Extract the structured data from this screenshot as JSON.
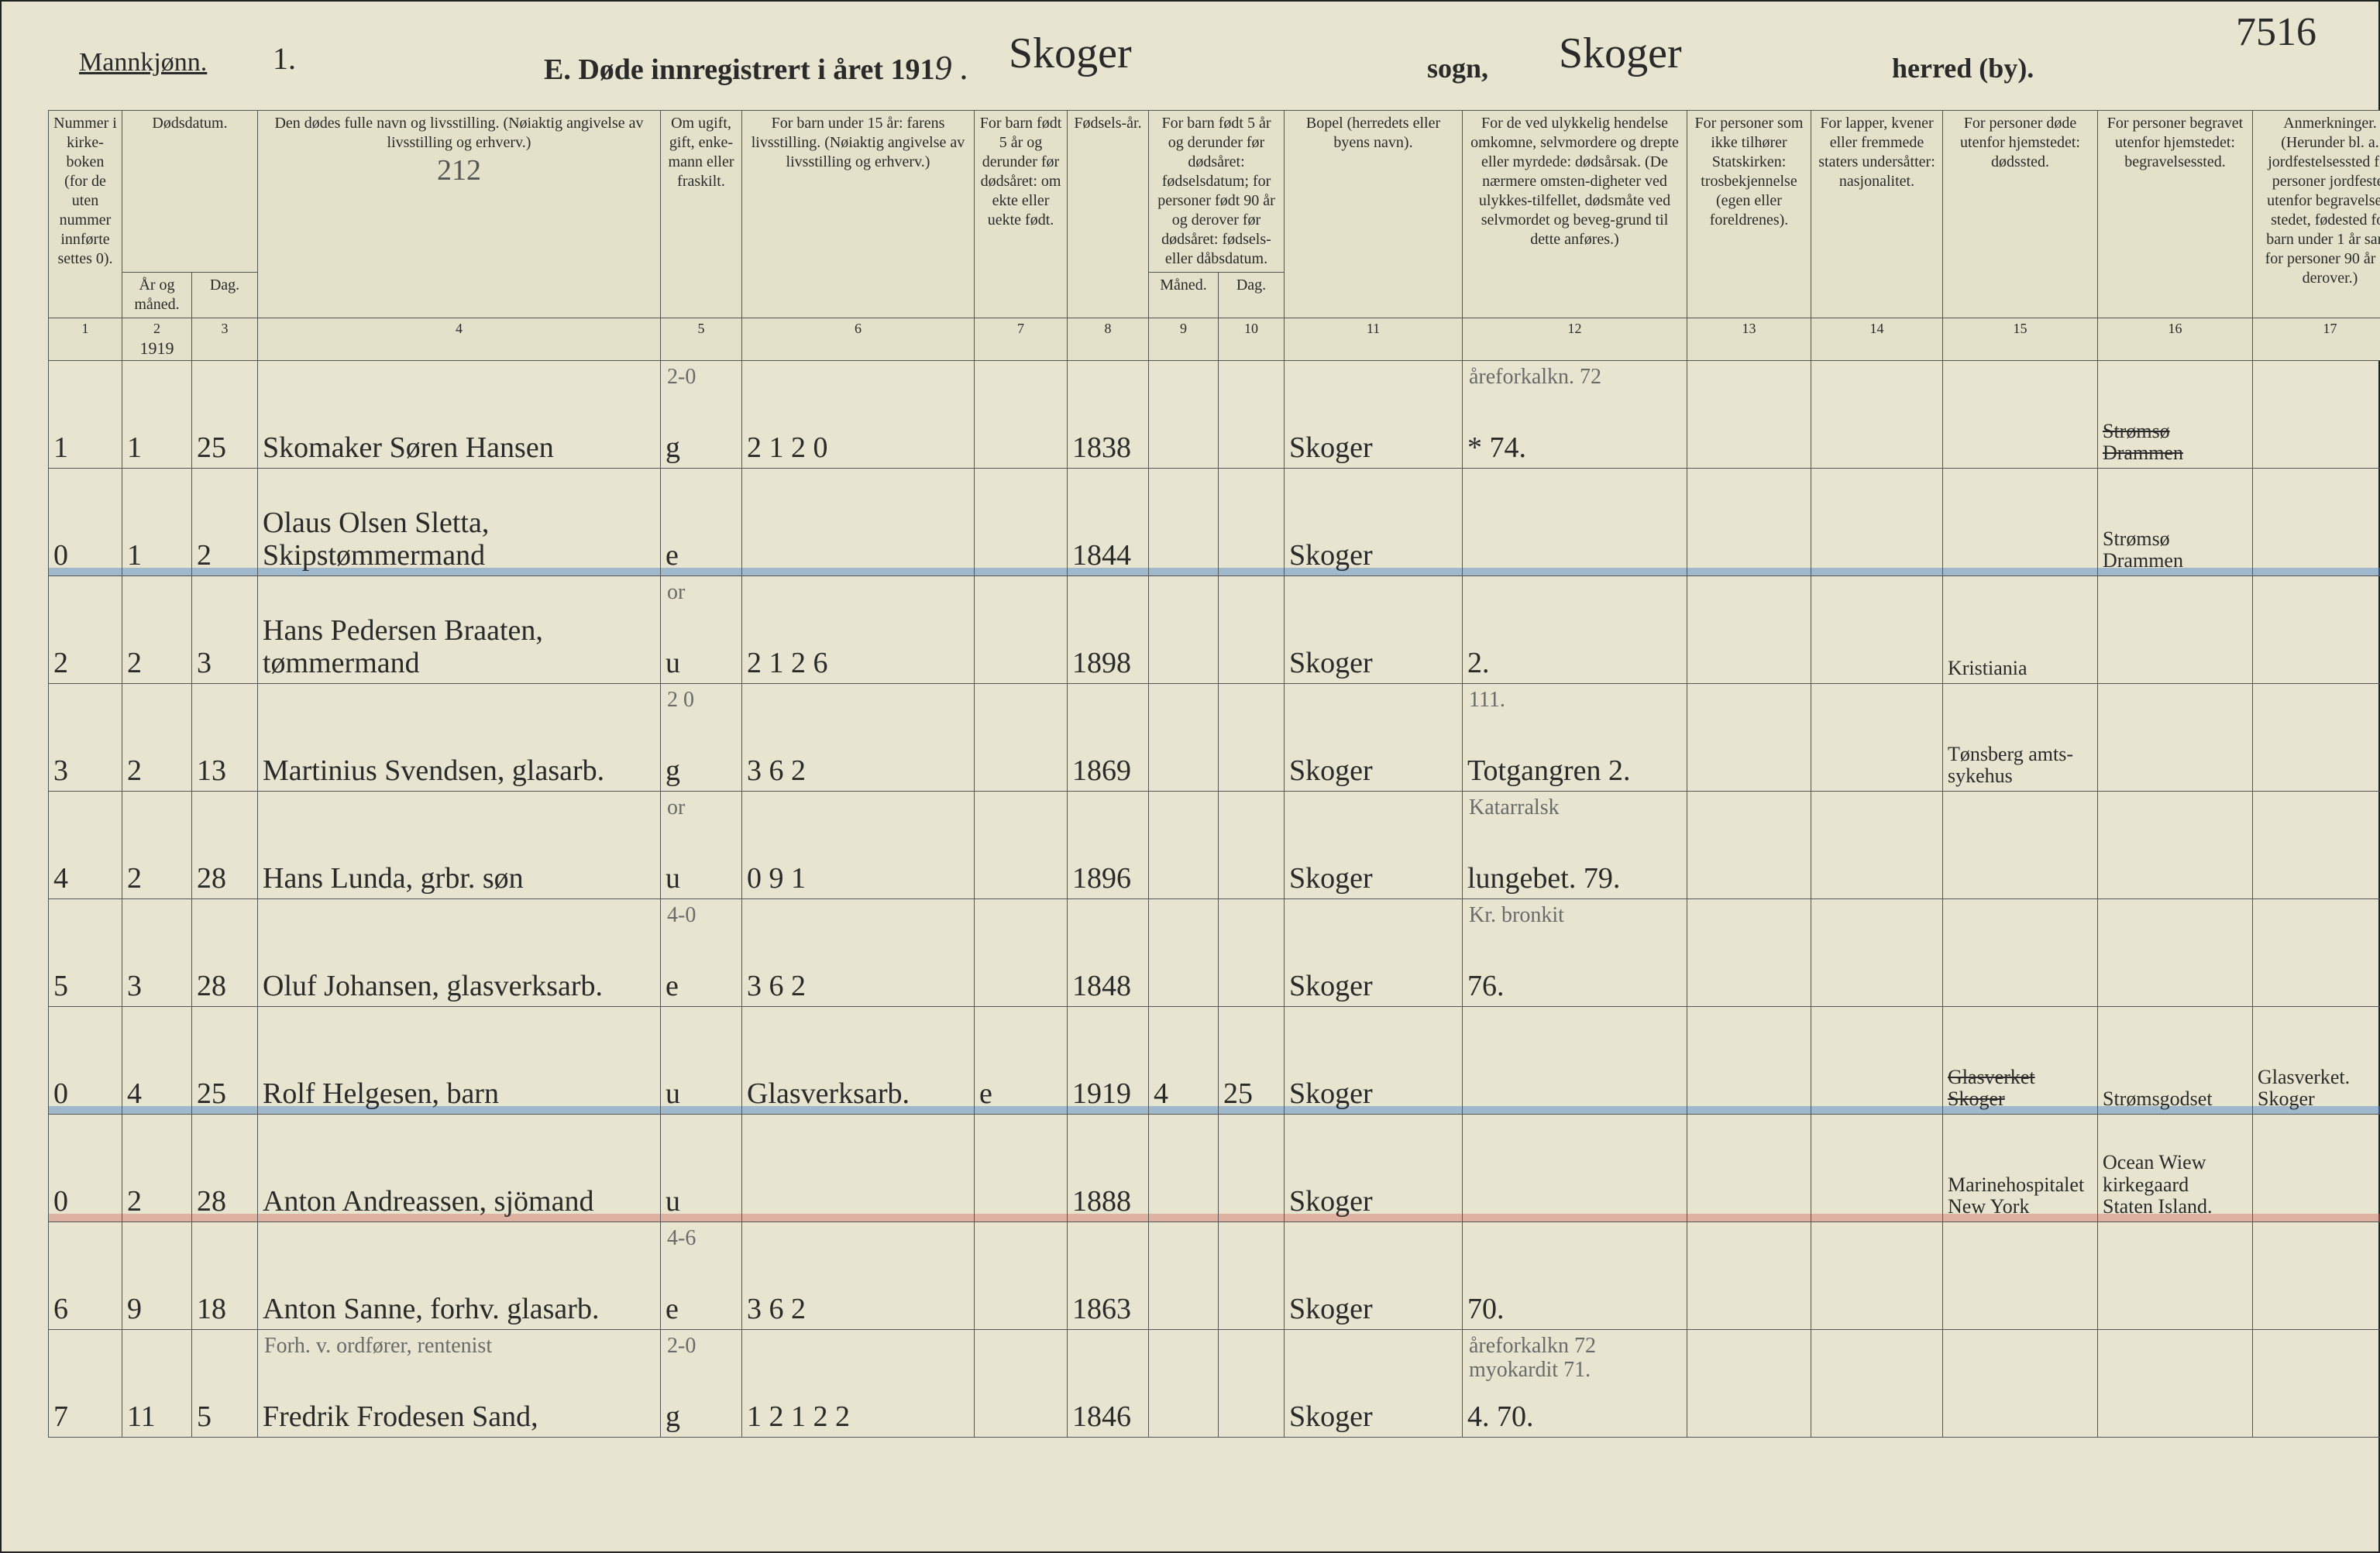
{
  "top": {
    "mannk_label": "Mannkjønn.",
    "mannk_value": "1.",
    "title_prefix": "E. Døde innregistrert i året 191",
    "year_digit": "9 .",
    "sogn_value": "Skoger",
    "sogn_label": "sogn,",
    "herred_value": "Skoger",
    "herred_label": "herred (by).",
    "page_corner": "7516"
  },
  "head": {
    "h1": "Nummer i kirke-boken (for de uten nummer innførte settes 0).",
    "h2": "Dødsdatum.",
    "h2a": "År og måned.",
    "h2b": "Dag.",
    "h4": "Den dødes fulle navn og livsstilling. (Nøiaktig angivelse av livsstilling og erhverv.)",
    "h4_note": "212",
    "h5": "Om ugift, gift, enke-mann eller fraskilt.",
    "h6": "For barn under 15 år: farens livsstilling. (Nøiaktig angivelse av livsstilling og erhverv.)",
    "h7": "For barn født 5 år og derunder før dødsåret: om ekte eller uekte født.",
    "h8": "Fødsels-år.",
    "h9": "For barn født 5 år og derunder før dødsåret: fødselsdatum; for personer født 90 år og derover før dødsåret: fødsels- eller dåbsdatum.",
    "h9a": "Måned.",
    "h9b": "Dag.",
    "h11": "Bopel (herredets eller byens navn).",
    "h12": "For de ved ulykkelig hendelse omkomne, selvmordere og drepte eller myrdede: dødsårsak. (De nærmere omsten-digheter ved ulykkes-tilfellet, dødsmåte ved selvmordet og beveg-grund til dette anføres.)",
    "h13": "For personer som ikke tilhører Statskirken: trosbekjennelse (egen eller foreldrenes).",
    "h14": "For lapper, kvener eller fremmede staters undersåtter: nasjonalitet.",
    "h15": "For personer døde utenfor hjemstedet: dødssted.",
    "h16": "For personer begravet utenfor hjemstedet: begravelsessted.",
    "h17": "Anmerkninger. (Herunder bl. a. jordfestelsessted for personer jordfestet utenfor begravelses-stedet, fødested for barn under 1 år samt for personer 90 år og derover.)",
    "nums": [
      "1",
      "2",
      "3",
      "4",
      "5",
      "6",
      "7",
      "8",
      "9",
      "10",
      "11",
      "12",
      "13",
      "14",
      "15",
      "16",
      "17"
    ],
    "year_header": "1919"
  },
  "rows": [
    {
      "mark": "",
      "c1": "1",
      "c2": "1",
      "c3": "25",
      "c4": "Skomaker Søren Hansen",
      "c5_sup": "2-0",
      "c5": "g",
      "c6": "2 1 2 0",
      "c7": "",
      "c8": "1838",
      "c9": "",
      "c10": "",
      "c11": "Skoger",
      "c12_sup": "åreforkalkn. 72",
      "c12": "* 74.",
      "c13": "",
      "c14": "",
      "c15": "",
      "c16": "Strømsø\nDrammen",
      "c16_strike": true,
      "c17": ""
    },
    {
      "mark": "blue",
      "c1": "0",
      "c2": "1",
      "c3": "2",
      "c4": "Olaus Olsen Sletta, Skipstømmermand",
      "c5_sup": "",
      "c5": "e",
      "c6": "",
      "c7": "",
      "c8": "1844",
      "c9": "",
      "c10": "",
      "c11": "Skoger",
      "c12_sup": "",
      "c12": "",
      "c13": "",
      "c14": "",
      "c15": "",
      "c16": "Strømsø\nDrammen",
      "c16_strike": false,
      "c17": ""
    },
    {
      "mark": "",
      "c1": "2",
      "c2": "2",
      "c3": "3",
      "c4": "Hans Pedersen Braaten, tømmermand",
      "c5_sup": "or",
      "c5": "u",
      "c6": "2 1 2 6",
      "c7": "",
      "c8": "1898",
      "c9": "",
      "c10": "",
      "c11": "Skoger",
      "c12_sup": "",
      "c12": "2.",
      "c13": "",
      "c14": "",
      "c15": "Kristiania",
      "c16": "",
      "c16_strike": false,
      "c17": ""
    },
    {
      "mark": "",
      "c1": "3",
      "c2": "2",
      "c3": "13",
      "c4": "Martinius Svendsen, glasarb.",
      "c5_sup": "2 0",
      "c5": "g",
      "c6": "3 6 2",
      "c7": "",
      "c8": "1869",
      "c9": "",
      "c10": "",
      "c11": "Skoger",
      "c12_sup": "111.",
      "c12": "Totgangren 2.",
      "c13": "",
      "c14": "",
      "c15": "Tønsberg amts-\nsykehus",
      "c16": "",
      "c16_strike": false,
      "c17": ""
    },
    {
      "mark": "",
      "c1": "4",
      "c2": "2",
      "c3": "28",
      "c4": "Hans Lunda, grbr. søn",
      "c5_sup": "or",
      "c5": "u",
      "c6": "0 9 1",
      "c7": "",
      "c8": "1896",
      "c9": "",
      "c10": "",
      "c11": "Skoger",
      "c12_sup": "Katarralsk",
      "c12": "lungebet. 79.",
      "c13": "",
      "c14": "",
      "c15": "",
      "c16": "",
      "c16_strike": false,
      "c17": ""
    },
    {
      "mark": "",
      "c1": "5",
      "c2": "3",
      "c3": "28",
      "c4": "Oluf Johansen, glasverksarb.",
      "c5_sup": "4-0",
      "c5": "e",
      "c6": "3 6 2",
      "c7": "",
      "c8": "1848",
      "c9": "",
      "c10": "",
      "c11": "Skoger",
      "c12_sup": "Kr. bronkit",
      "c12": "76.",
      "c13": "",
      "c14": "",
      "c15": "",
      "c16": "",
      "c16_strike": false,
      "c17": ""
    },
    {
      "mark": "blue",
      "c1": "0",
      "c2": "4",
      "c3": "25",
      "c4": "Rolf Helgesen, barn",
      "c5_sup": "",
      "c5": "u",
      "c6": "Glasverksarb.",
      "c7": "e",
      "c8": "1919",
      "c9": "4",
      "c10": "25",
      "c11": "Skoger",
      "c12_sup": "",
      "c12": "",
      "c13": "",
      "c14": "",
      "c15": "Glasverket\nSkoger",
      "c15_strike": true,
      "c16": "Strømsgodset",
      "c16_strike": false,
      "c17": "Glasverket.\nSkoger"
    },
    {
      "mark": "red",
      "c1": "0",
      "c2": "2",
      "c3": "28",
      "c4": "Anton Andreassen, sjömand",
      "c5_sup": "",
      "c5": "u",
      "c6": "",
      "c7": "",
      "c8": "1888",
      "c9": "",
      "c10": "",
      "c11": "Skoger",
      "c12_sup": "",
      "c12": "",
      "c13": "",
      "c14": "",
      "c15": "Marinehospitalet\nNew York",
      "c16": "Ocean Wiew\nkirkegaard\nStaten Island.",
      "c16_strike": false,
      "c17": ""
    },
    {
      "mark": "",
      "c1": "6",
      "c2": "9",
      "c3": "18",
      "c4": "Anton Sanne, forhv. glasarb.",
      "c5_sup": "4-6",
      "c5": "e",
      "c6": "3 6 2",
      "c7": "",
      "c8": "1863",
      "c9": "",
      "c10": "",
      "c11": "Skoger",
      "c12_sup": "",
      "c12": "70.",
      "c13": "",
      "c14": "",
      "c15": "",
      "c16": "",
      "c16_strike": false,
      "c17": ""
    },
    {
      "mark": "",
      "c1": "7",
      "c2": "11",
      "c3": "5",
      "c4_sup": "Forh. v. ordfører, rentenist",
      "c4": "Fredrik Frodesen Sand,",
      "c5_sup": "2-0",
      "c5": "g",
      "c6": "1 2 1 2 2",
      "c7": "",
      "c8": "1846",
      "c9": "",
      "c10": "",
      "c11": "Skoger",
      "c12_sup": "åreforkalkn 72\nmyokardit 71.",
      "c12": "4. 70.",
      "c13": "",
      "c14": "",
      "c15": "",
      "c16": "",
      "c16_strike": false,
      "c17": ""
    }
  ]
}
